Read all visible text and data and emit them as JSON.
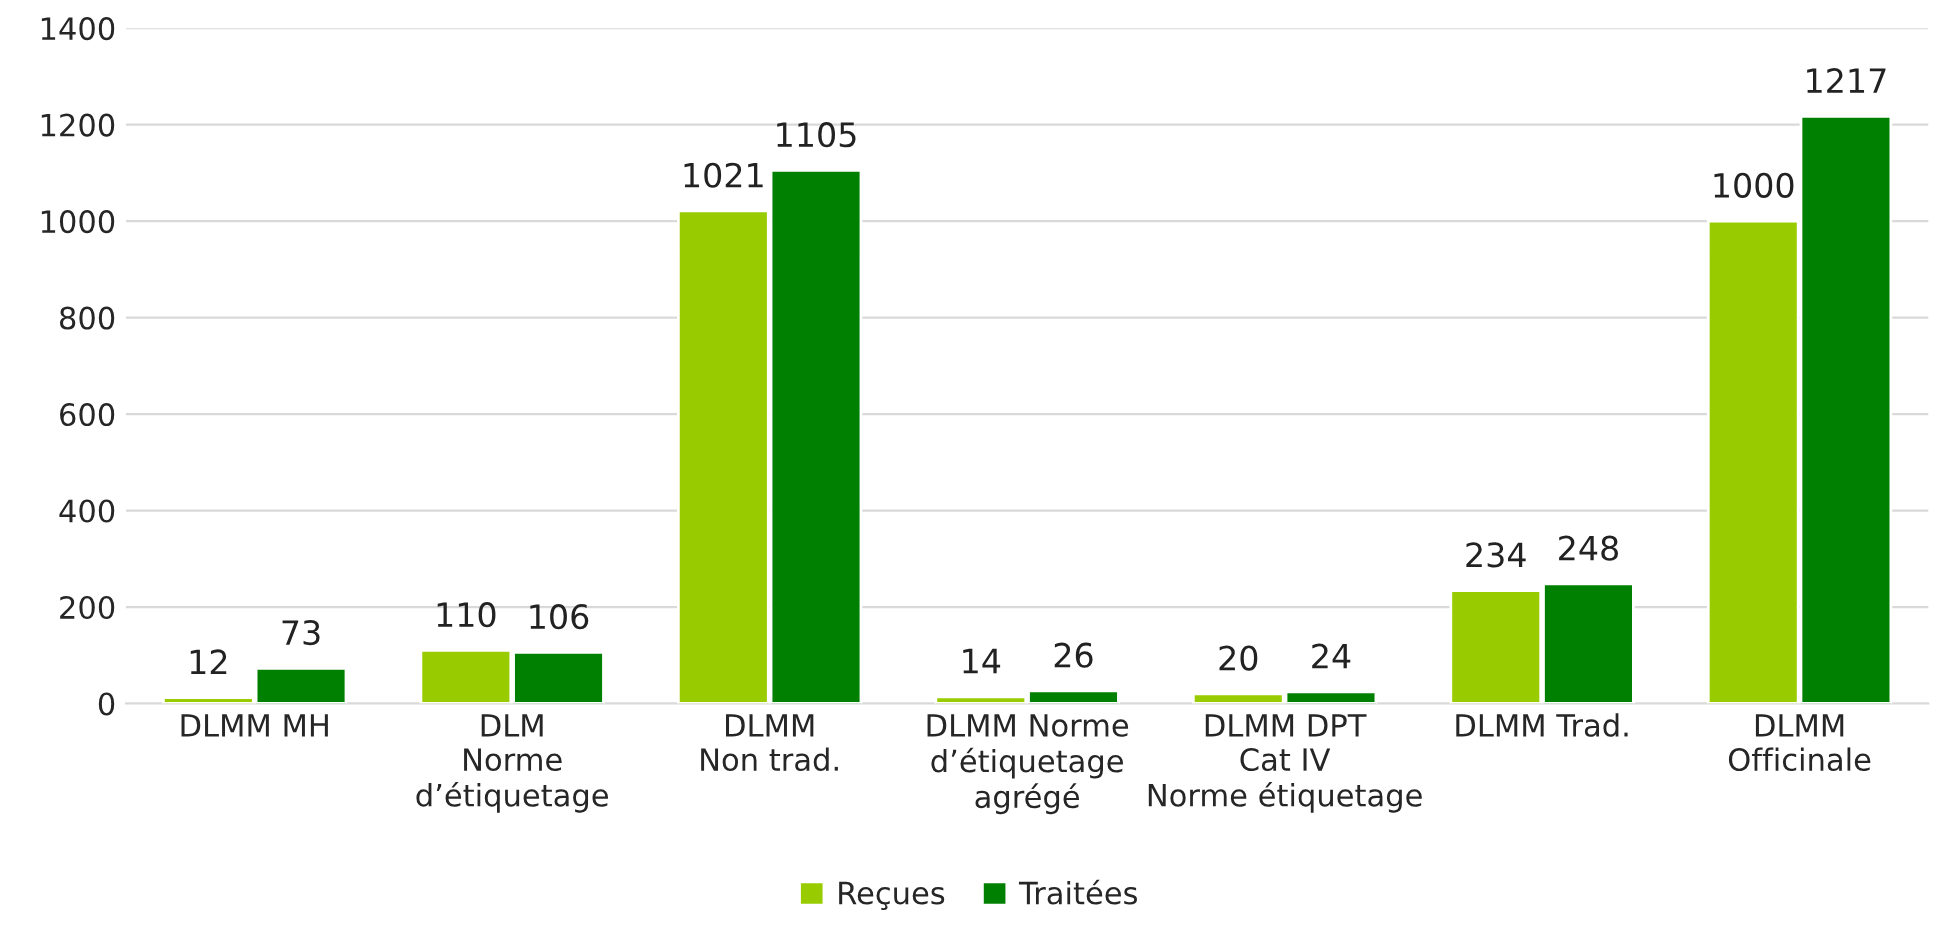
{
  "chart_data": {
    "type": "bar",
    "categories": [
      "DLMM MH",
      "DLM\nNorme\nd’étiquetage",
      "DLMM\nNon trad.",
      "DLMM Norme\nd’étiquetage\nagrégé",
      "DLMM DPT\nCat IV\nNorme étiquetage",
      "DLMM Trad.",
      "DLMM\nOfficinale"
    ],
    "series": [
      {
        "name": "Reçues",
        "color": "#99cc00",
        "values": [
          12,
          110,
          1021,
          14,
          20,
          234,
          1000
        ]
      },
      {
        "name": "Traitées",
        "color": "#008000",
        "values": [
          73,
          106,
          1105,
          26,
          24,
          248,
          1217
        ]
      }
    ],
    "ylim": [
      0,
      1400
    ],
    "yticks": [
      0,
      200,
      400,
      600,
      800,
      1000,
      1200,
      1400
    ],
    "grid": "y",
    "legend": "bottom",
    "data_labels": true
  }
}
